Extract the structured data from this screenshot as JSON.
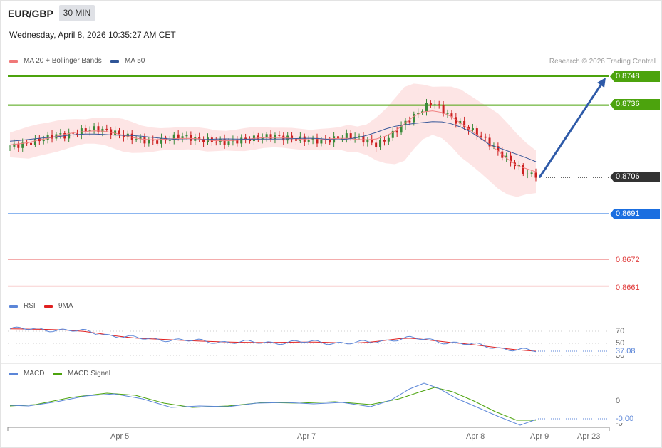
{
  "header": {
    "symbol": "EUR/GBP",
    "timeframe": "30 MIN",
    "datetime": "Wednesday, April 8, 2026 10:35:27 AM CET"
  },
  "legend": {
    "ma20_label": "MA 20 + Bollinger Bands",
    "ma50_label": "MA 50",
    "rsi_label": "RSI",
    "rsi_ma_label": "9MA",
    "macd_label": "MACD",
    "macd_signal_label": "MACD Signal"
  },
  "copyright": "Research © 2026 Trading Central",
  "colors": {
    "resistance": "#4ca30d",
    "support": "#1a6ee0",
    "current": "#333333",
    "target_low": "#e03a3a",
    "ma20": "#f08080",
    "ma50": "#3a5a9a",
    "bollinger_fill": "#fde0e0",
    "bull": "#3a8a3a",
    "bear": "#cc2020",
    "arrow": "#2e5aa8",
    "rsi": "#5b86d8",
    "rsi_ma": "#e02020",
    "macd": "#5b86d8",
    "macd_signal": "#4ca30d"
  },
  "price_levels": {
    "r2": "0.8748",
    "r1": "0.8736",
    "current": "0.8706",
    "s1": "0.8691",
    "s2": "0.8672",
    "s3": "0.8661"
  },
  "rsi_axis": {
    "upper": "70",
    "mid": "50",
    "lower": "30",
    "value": "37.08"
  },
  "macd_axis": {
    "zero": "0",
    "lower": "-0",
    "value": "-0.00"
  },
  "x_axis": {
    "ticks": [
      "Apr 5",
      "Apr 7",
      "Apr 8",
      "Apr 9",
      "Apr 23"
    ]
  },
  "chart_data": {
    "type": "line",
    "title": "EUR/GBP",
    "timeframe": "30 MIN",
    "price_range": [
      0.8655,
      0.8752
    ],
    "close_series_approx": [
      0.87188,
      0.87195,
      0.87202,
      0.87214,
      0.87226,
      0.87238,
      0.87233,
      0.87245,
      0.87257,
      0.87262,
      0.87257,
      0.87247,
      0.87235,
      0.87225,
      0.87215,
      0.87209,
      0.87212,
      0.87221,
      0.87233,
      0.87226,
      0.87218,
      0.87214,
      0.87212,
      0.87206,
      0.87212,
      0.87218,
      0.87222,
      0.87228,
      0.87232,
      0.87226,
      0.87221,
      0.87218,
      0.87215,
      0.87212,
      0.87215,
      0.87225,
      0.87233,
      0.87226,
      0.87212,
      0.87194,
      0.87218,
      0.87249,
      0.87285,
      0.87314,
      0.87346,
      0.87374,
      0.87341,
      0.87307,
      0.87282,
      0.87259,
      0.87235,
      0.87204,
      0.87164,
      0.87135,
      0.87106,
      0.87074,
      0.87071
    ],
    "resistance_levels": [
      0.8748,
      0.8736
    ],
    "support_levels": [
      0.8691,
      0.8672,
      0.8661
    ],
    "current_price": 0.8706,
    "projection": {
      "from": 0.8706,
      "to": 0.8748
    },
    "rsi_range": [
      25,
      80
    ],
    "rsi_last": 37.08,
    "rsi_approx": [
      73.8,
      73.7,
      73.3,
      73.0,
      72.6,
      72.0,
      70.9,
      69.6,
      67.4,
      64.8,
      62.4,
      60.3,
      58.5,
      57.6,
      56.9,
      56.2,
      55.2,
      54.4,
      53.7,
      53.0,
      52.5,
      52.0,
      51.7,
      51.4,
      51.3,
      51.4,
      51.6,
      51.9,
      52.1,
      52.1,
      51.6,
      51.0,
      50.5,
      50.7,
      51.6,
      53.4,
      55.5,
      57.6,
      58.4,
      57.1,
      55.0,
      53.0,
      51.2,
      49.6,
      47.8,
      45.8,
      43.6,
      41.5,
      39.7,
      38.2,
      37.1
    ],
    "macd_last": -0.0
  }
}
